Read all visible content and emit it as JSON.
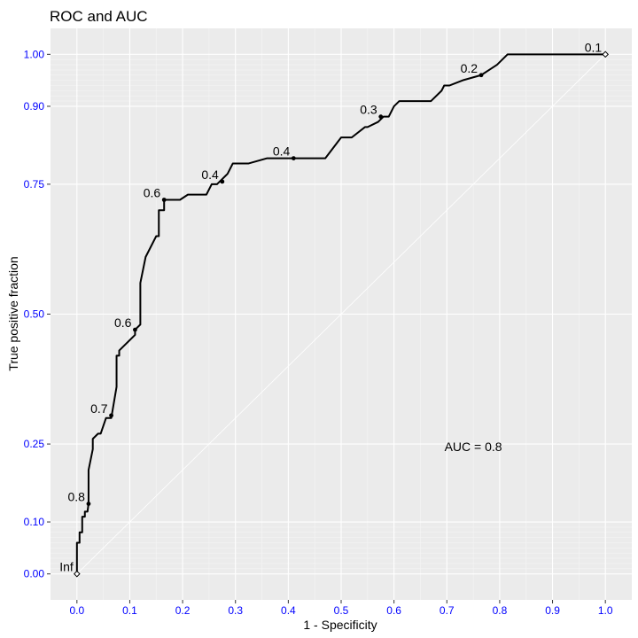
{
  "chart_data": {
    "type": "line",
    "title": "ROC and AUC",
    "xlabel": "1 - Specificity",
    "ylabel": "True positive fraction",
    "xlim": [
      -0.05,
      1.05
    ],
    "ylim": [
      -0.05,
      1.05
    ],
    "x_ticks": [
      0.0,
      0.1,
      0.2,
      0.3,
      0.4,
      0.5,
      0.6,
      0.7,
      0.8,
      0.9,
      1.0
    ],
    "x_tick_labels": [
      "0.0",
      "0.1",
      "0.2",
      "0.3",
      "0.4",
      "0.5",
      "0.6",
      "0.7",
      "0.8",
      "0.9",
      "1.0"
    ],
    "y_ticks": [
      0.0,
      0.1,
      0.25,
      0.5,
      0.75,
      0.9,
      1.0
    ],
    "y_tick_labels": [
      "0.00",
      "0.10",
      "0.25",
      "0.50",
      "0.75",
      "0.90",
      "1.00"
    ],
    "y_minor_gridlines": [
      0.01,
      0.02,
      0.03,
      0.04,
      0.05,
      0.06,
      0.07,
      0.08,
      0.09,
      0.91,
      0.92,
      0.93,
      0.94,
      0.95,
      0.96,
      0.97,
      0.98,
      0.99
    ],
    "grid": true,
    "diagonal_reference": true,
    "series": [
      {
        "x": [
          0.0,
          0.0,
          0.005,
          0.005,
          0.01,
          0.01,
          0.015,
          0.015,
          0.02,
          0.022,
          0.022,
          0.03,
          0.03,
          0.04,
          0.045,
          0.055,
          0.065,
          0.07,
          0.075,
          0.075,
          0.08,
          0.08,
          0.09,
          0.11,
          0.11,
          0.12,
          0.12,
          0.13,
          0.15,
          0.155,
          0.155,
          0.165,
          0.165,
          0.195,
          0.21,
          0.245,
          0.255,
          0.265,
          0.275,
          0.275,
          0.285,
          0.295,
          0.305,
          0.325,
          0.36,
          0.385,
          0.41,
          0.47,
          0.485,
          0.5,
          0.52,
          0.545,
          0.55,
          0.57,
          0.58,
          0.59,
          0.6,
          0.61,
          0.625,
          0.67,
          0.69,
          0.695,
          0.705,
          0.73,
          0.765,
          0.78,
          0.795,
          0.815,
          0.96,
          1.0
        ],
        "y": [
          0.0,
          0.06,
          0.06,
          0.08,
          0.08,
          0.11,
          0.11,
          0.12,
          0.12,
          0.135,
          0.2,
          0.24,
          0.26,
          0.27,
          0.27,
          0.3,
          0.3,
          0.33,
          0.36,
          0.42,
          0.42,
          0.43,
          0.44,
          0.46,
          0.47,
          0.48,
          0.56,
          0.61,
          0.65,
          0.65,
          0.7,
          0.7,
          0.72,
          0.72,
          0.73,
          0.73,
          0.75,
          0.75,
          0.76,
          0.76,
          0.77,
          0.79,
          0.79,
          0.79,
          0.8,
          0.8,
          0.8,
          0.8,
          0.82,
          0.84,
          0.84,
          0.86,
          0.86,
          0.87,
          0.88,
          0.88,
          0.9,
          0.91,
          0.91,
          0.91,
          0.93,
          0.94,
          0.94,
          0.95,
          0.96,
          0.97,
          0.98,
          1.0,
          1.0,
          1.0
        ]
      }
    ],
    "cutoff_points": [
      {
        "label": "Inf",
        "x": 0.0,
        "y": 0.0
      },
      {
        "label": "0.8",
        "x": 0.022,
        "y": 0.135
      },
      {
        "label": "0.7",
        "x": 0.065,
        "y": 0.305
      },
      {
        "label": "0.6",
        "x": 0.11,
        "y": 0.47
      },
      {
        "label": "0.6",
        "x": 0.165,
        "y": 0.72
      },
      {
        "label": "0.4",
        "x": 0.275,
        "y": 0.755
      },
      {
        "label": "0.4",
        "x": 0.41,
        "y": 0.8
      },
      {
        "label": "0.3",
        "x": 0.575,
        "y": 0.88
      },
      {
        "label": "0.2",
        "x": 0.765,
        "y": 0.96
      },
      {
        "label": "0.1",
        "x": 1.0,
        "y": 1.0
      }
    ],
    "annotation": {
      "text": "AUC = 0.8",
      "x": 0.75,
      "y": 0.245
    }
  }
}
